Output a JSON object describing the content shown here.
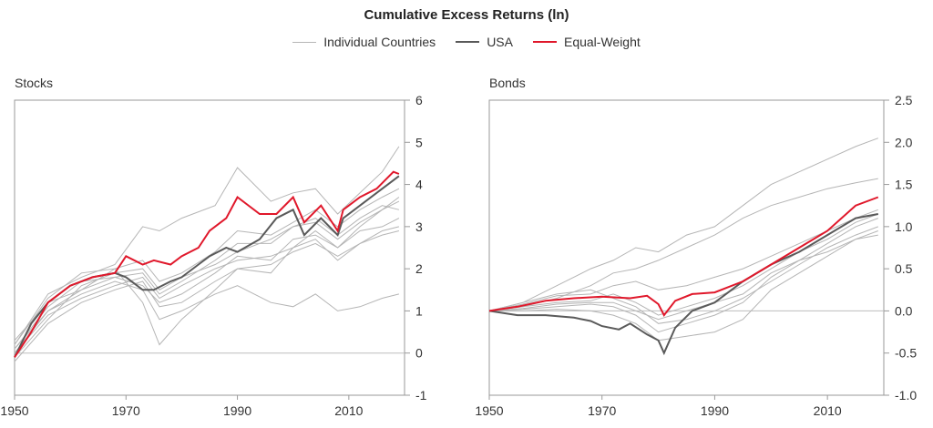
{
  "title": "Cumulative Excess Returns (ln)",
  "legend": [
    {
      "label": "Individual Countries",
      "color": "#b5b5b5"
    },
    {
      "label": "USA",
      "color": "#5a5a5a"
    },
    {
      "label": "Equal-Weight",
      "color": "#e0182b"
    }
  ],
  "colors": {
    "countries": "#b5b5b5",
    "usa": "#5a5a5a",
    "equal_weight": "#e0182b",
    "frame": "#9a9a9a",
    "zero_line": "#bdbdbd"
  },
  "chart_data": [
    {
      "type": "line",
      "title": "Stocks",
      "xlim": [
        1950,
        2020
      ],
      "ylim": [
        -1,
        6
      ],
      "xticks": [
        "1950",
        "1970",
        "1990",
        "2010"
      ],
      "yticks": [
        "6",
        "5",
        "4",
        "3",
        "2",
        "1",
        "0",
        "-1"
      ],
      "series": [
        {
          "name": "Equal-Weight",
          "x": [
            1950,
            1953,
            1956,
            1960,
            1964,
            1968,
            1970,
            1973,
            1975,
            1978,
            1980,
            1983,
            1985,
            1988,
            1990,
            1994,
            1997,
            2000,
            2002,
            2005,
            2008,
            2009,
            2012,
            2015,
            2018,
            2019
          ],
          "y": [
            -0.1,
            0.5,
            1.2,
            1.6,
            1.8,
            1.9,
            2.3,
            2.1,
            2.2,
            2.1,
            2.3,
            2.5,
            2.9,
            3.2,
            3.7,
            3.3,
            3.3,
            3.7,
            3.1,
            3.5,
            2.9,
            3.4,
            3.7,
            3.9,
            4.3,
            4.25
          ]
        },
        {
          "name": "USA",
          "x": [
            1950,
            1953,
            1956,
            1960,
            1964,
            1968,
            1970,
            1973,
            1975,
            1978,
            1980,
            1983,
            1985,
            1988,
            1990,
            1994,
            1997,
            2000,
            2002,
            2005,
            2008,
            2009,
            2012,
            2015,
            2018,
            2019
          ],
          "y": [
            -0.1,
            0.7,
            1.2,
            1.6,
            1.8,
            1.9,
            1.8,
            1.5,
            1.5,
            1.7,
            1.8,
            2.1,
            2.3,
            2.5,
            2.4,
            2.7,
            3.2,
            3.4,
            2.8,
            3.2,
            2.8,
            3.2,
            3.5,
            3.8,
            4.1,
            4.2
          ]
        },
        {
          "type": "countries",
          "x": [
            1950,
            1956,
            1962,
            1968,
            1973,
            1976,
            1980,
            1986,
            1990,
            1996,
            2000,
            2004,
            2008,
            2012,
            2016,
            2019
          ],
          "y": [
            0.2,
            1.4,
            1.8,
            2.1,
            3.0,
            2.9,
            3.2,
            3.5,
            4.4,
            3.6,
            3.8,
            3.9,
            3.3,
            3.8,
            4.3,
            4.9
          ]
        },
        {
          "type": "countries",
          "x": [
            1950,
            1956,
            1962,
            1968,
            1973,
            1976,
            1980,
            1986,
            1990,
            1996,
            2000,
            2004,
            2008,
            2012,
            2016,
            2019
          ],
          "y": [
            0.1,
            1.0,
            1.4,
            1.7,
            1.5,
            0.8,
            1.0,
            1.4,
            1.6,
            1.2,
            1.1,
            1.4,
            1.0,
            1.1,
            1.3,
            1.4
          ]
        },
        {
          "type": "countries",
          "x": [
            1950,
            1956,
            1962,
            1968,
            1973,
            1976,
            1980,
            1986,
            1990,
            1996,
            2000,
            2004,
            2008,
            2012,
            2016,
            2019
          ],
          "y": [
            0.3,
            1.2,
            1.5,
            2.0,
            1.2,
            0.2,
            0.8,
            1.5,
            2.0,
            1.9,
            2.5,
            2.9,
            2.5,
            3.0,
            3.4,
            3.6
          ]
        },
        {
          "type": "countries",
          "x": [
            1950,
            1956,
            1962,
            1968,
            1973,
            1976,
            1980,
            1986,
            1990,
            1996,
            2000,
            2004,
            2008,
            2012,
            2016,
            2019
          ],
          "y": [
            0.0,
            0.9,
            1.3,
            1.6,
            1.8,
            1.3,
            1.6,
            2.0,
            2.2,
            2.3,
            2.5,
            2.7,
            2.2,
            2.6,
            2.9,
            3.0
          ]
        },
        {
          "type": "countries",
          "x": [
            1950,
            1956,
            1962,
            1968,
            1973,
            1976,
            1980,
            1986,
            1990,
            1996,
            2000,
            2004,
            2008,
            2012,
            2016,
            2019
          ],
          "y": [
            -0.1,
            0.8,
            1.6,
            1.9,
            2.0,
            1.5,
            1.8,
            2.1,
            2.4,
            2.7,
            3.0,
            3.1,
            2.7,
            3.1,
            3.4,
            3.7
          ]
        },
        {
          "type": "countries",
          "x": [
            1950,
            1956,
            1962,
            1968,
            1973,
            1976,
            1980,
            1986,
            1990,
            1996,
            2000,
            2004,
            2008,
            2012,
            2016,
            2019
          ],
          "y": [
            0.1,
            1.1,
            1.7,
            1.8,
            1.6,
            1.2,
            1.4,
            1.9,
            2.3,
            2.2,
            2.7,
            2.8,
            2.5,
            2.9,
            3.0,
            3.2
          ]
        },
        {
          "type": "countries",
          "x": [
            1950,
            1956,
            1962,
            1968,
            1973,
            1976,
            1980,
            1986,
            1990,
            1996,
            2000,
            2004,
            2008,
            2012,
            2016,
            2019
          ],
          "y": [
            0.2,
            1.3,
            1.9,
            2.0,
            2.2,
            1.7,
            1.9,
            2.4,
            2.9,
            2.8,
            3.1,
            3.4,
            3.0,
            3.4,
            3.7,
            3.9
          ]
        },
        {
          "type": "countries",
          "x": [
            1950,
            1956,
            1962,
            1968,
            1973,
            1976,
            1980,
            1986,
            1990,
            1996,
            2000,
            2004,
            2008,
            2012,
            2016,
            2019
          ],
          "y": [
            -0.2,
            0.7,
            1.2,
            1.5,
            1.7,
            1.1,
            1.2,
            1.7,
            2.0,
            2.1,
            2.4,
            2.6,
            2.3,
            2.6,
            2.8,
            2.9
          ]
        },
        {
          "type": "countries",
          "x": [
            1950,
            1956,
            1962,
            1968,
            1973,
            1976,
            1980,
            1986,
            1990,
            1996,
            2000,
            2004,
            2008,
            2012,
            2016,
            2019
          ],
          "y": [
            0.0,
            1.0,
            1.5,
            1.8,
            1.9,
            1.4,
            1.7,
            2.2,
            2.6,
            2.6,
            3.0,
            3.2,
            2.8,
            3.2,
            3.5,
            3.4
          ]
        }
      ]
    },
    {
      "type": "line",
      "title": "Bonds",
      "xlim": [
        1950,
        2020
      ],
      "ylim": [
        -1,
        2.5
      ],
      "xticks": [
        "1950",
        "1970",
        "1990",
        "2010"
      ],
      "yticks": [
        "2.5",
        "2.0",
        "1.5",
        "1.0",
        "0.5",
        "0.0",
        "-0.5",
        "-1.0"
      ],
      "series": [
        {
          "name": "Equal-Weight",
          "x": [
            1950,
            1955,
            1960,
            1965,
            1970,
            1975,
            1978,
            1980,
            1981,
            1983,
            1986,
            1990,
            1995,
            2000,
            2005,
            2010,
            2015,
            2019
          ],
          "y": [
            0.0,
            0.05,
            0.12,
            0.15,
            0.17,
            0.15,
            0.18,
            0.08,
            -0.05,
            0.12,
            0.2,
            0.22,
            0.35,
            0.55,
            0.75,
            0.95,
            1.25,
            1.35
          ]
        },
        {
          "name": "USA",
          "x": [
            1950,
            1955,
            1960,
            1965,
            1968,
            1970,
            1973,
            1975,
            1978,
            1980,
            1981,
            1983,
            1986,
            1990,
            1995,
            2000,
            2005,
            2010,
            2015,
            2019
          ],
          "y": [
            0.0,
            -0.05,
            -0.05,
            -0.08,
            -0.12,
            -0.18,
            -0.22,
            -0.15,
            -0.28,
            -0.35,
            -0.5,
            -0.2,
            0.0,
            0.1,
            0.35,
            0.55,
            0.7,
            0.9,
            1.1,
            1.15
          ]
        },
        {
          "type": "countries",
          "x": [
            1950,
            1956,
            1962,
            1968,
            1972,
            1976,
            1980,
            1985,
            1990,
            1995,
            2000,
            2005,
            2010,
            2015,
            2019
          ],
          "y": [
            0.0,
            0.1,
            0.3,
            0.5,
            0.6,
            0.75,
            0.7,
            0.9,
            1.0,
            1.25,
            1.5,
            1.65,
            1.8,
            1.95,
            2.05
          ]
        },
        {
          "type": "countries",
          "x": [
            1950,
            1956,
            1962,
            1968,
            1972,
            1976,
            1980,
            1985,
            1990,
            1995,
            2000,
            2005,
            2010,
            2015,
            2019
          ],
          "y": [
            0.0,
            0.05,
            0.15,
            0.3,
            0.45,
            0.5,
            0.6,
            0.75,
            0.9,
            1.1,
            1.25,
            1.35,
            1.45,
            1.52,
            1.57
          ]
        },
        {
          "type": "countries",
          "x": [
            1950,
            1956,
            1962,
            1968,
            1972,
            1976,
            1980,
            1985,
            1990,
            1995,
            2000,
            2005,
            2010,
            2015,
            2019
          ],
          "y": [
            0.0,
            0.08,
            0.18,
            0.2,
            0.3,
            0.35,
            0.25,
            0.3,
            0.4,
            0.5,
            0.65,
            0.8,
            0.95,
            1.1,
            1.2
          ]
        },
        {
          "type": "countries",
          "x": [
            1950,
            1956,
            1962,
            1968,
            1972,
            1976,
            1980,
            1985,
            1990,
            1995,
            2000,
            2005,
            2010,
            2015,
            2019
          ],
          "y": [
            0.0,
            0.1,
            0.2,
            0.25,
            0.15,
            0.05,
            -0.15,
            -0.1,
            0.0,
            0.15,
            0.35,
            0.55,
            0.75,
            0.9,
            1.0
          ]
        },
        {
          "type": "countries",
          "x": [
            1950,
            1956,
            1962,
            1968,
            1972,
            1976,
            1980,
            1985,
            1990,
            1995,
            2000,
            2005,
            2010,
            2015,
            2019
          ],
          "y": [
            0.0,
            0.02,
            0.05,
            0.08,
            0.05,
            -0.05,
            -0.25,
            -0.15,
            -0.05,
            0.1,
            0.4,
            0.6,
            0.8,
            1.0,
            1.1
          ]
        },
        {
          "type": "countries",
          "x": [
            1950,
            1956,
            1962,
            1968,
            1972,
            1976,
            1980,
            1985,
            1990,
            1995,
            2000,
            2005,
            2010,
            2015,
            2019
          ],
          "y": [
            0.0,
            0.05,
            0.1,
            0.12,
            0.2,
            0.1,
            -0.05,
            0.05,
            0.15,
            0.3,
            0.5,
            0.7,
            0.85,
            1.05,
            1.15
          ]
        },
        {
          "type": "countries",
          "x": [
            1950,
            1956,
            1962,
            1968,
            1972,
            1976,
            1980,
            1985,
            1990,
            1995,
            2000,
            2005,
            2010,
            2015,
            2019
          ],
          "y": [
            0.0,
            0.0,
            0.02,
            0.0,
            -0.05,
            -0.15,
            -0.35,
            -0.3,
            -0.25,
            -0.1,
            0.25,
            0.45,
            0.65,
            0.85,
            0.95
          ]
        },
        {
          "type": "countries",
          "x": [
            1950,
            1956,
            1962,
            1968,
            1972,
            1976,
            1980,
            1985,
            1990,
            1995,
            2000,
            2005,
            2010,
            2015,
            2019
          ],
          "y": [
            0.0,
            0.03,
            0.08,
            0.1,
            0.1,
            0.0,
            -0.1,
            0.0,
            0.1,
            0.2,
            0.45,
            0.6,
            0.7,
            0.85,
            0.9
          ]
        }
      ]
    }
  ]
}
